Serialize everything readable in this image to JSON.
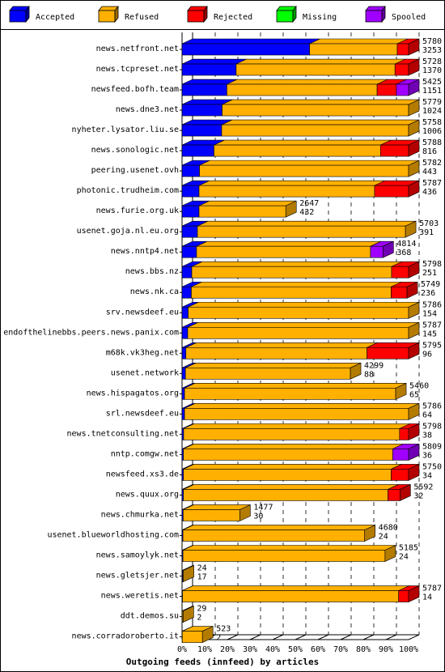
{
  "chart_data": {
    "type": "bar",
    "stacked": true,
    "orientation": "horizontal",
    "title": "Outgoing feeds (innfeed) by articles",
    "xlim": [
      0,
      100
    ],
    "x_ticks": [
      "0%",
      "10%",
      "20%",
      "30%",
      "40%",
      "50%",
      "60%",
      "70%",
      "80%",
      "90%",
      "100%"
    ],
    "grid": "vertical dashed at 10% steps",
    "legend_position": "top",
    "series": [
      {
        "name": "Accepted",
        "color": "#0000ff"
      },
      {
        "name": "Refused",
        "color": "#ffb000"
      },
      {
        "name": "Rejected",
        "color": "#ff0000"
      },
      {
        "name": "Missing",
        "color": "#00ff00"
      },
      {
        "name": "Spooled",
        "color": "#a000ff"
      }
    ],
    "rows": [
      {
        "label": "news.netfront.net",
        "total": 5780,
        "accepted": 3253,
        "segments": [
          56.3,
          38.7,
          5.0,
          0,
          0
        ]
      },
      {
        "label": "news.tcpreset.net",
        "total": 5728,
        "accepted": 1370,
        "segments": [
          23.9,
          70.1,
          6.0,
          0,
          0
        ]
      },
      {
        "label": "newsfeed.bofh.team",
        "total": 5425,
        "accepted": 1151,
        "segments": [
          19.8,
          66.3,
          8.5,
          0,
          5.4
        ]
      },
      {
        "label": "news.dne3.net",
        "total": 5779,
        "accepted": 1024,
        "segments": [
          17.7,
          82.3,
          0,
          0,
          0
        ]
      },
      {
        "label": "nyheter.lysator.liu.se",
        "total": 5758,
        "accepted": 1006,
        "segments": [
          17.5,
          82.5,
          0,
          0,
          0
        ]
      },
      {
        "label": "news.sonologic.net",
        "total": 5788,
        "accepted": 816,
        "segments": [
          14.1,
          73.5,
          12.4,
          0,
          0
        ]
      },
      {
        "label": "peering.usenet.ovh",
        "total": 5782,
        "accepted": 443,
        "segments": [
          7.7,
          92.3,
          0,
          0,
          0
        ]
      },
      {
        "label": "photonic.trudheim.com",
        "total": 5787,
        "accepted": 436,
        "segments": [
          7.5,
          77.5,
          15.0,
          0,
          0
        ]
      },
      {
        "label": "news.furie.org.uk",
        "total": 2647,
        "accepted": 432,
        "segments": [
          7.5,
          38.3,
          0,
          0,
          0
        ]
      },
      {
        "label": "usenet.goja.nl.eu.org",
        "total": 5703,
        "accepted": 391,
        "segments": [
          6.8,
          91.8,
          0,
          0,
          0
        ]
      },
      {
        "label": "news.nntp4.net",
        "total": 4814,
        "accepted": 368,
        "segments": [
          6.4,
          76.8,
          0,
          0,
          5.5
        ]
      },
      {
        "label": "news.bbs.nz",
        "total": 5798,
        "accepted": 251,
        "segments": [
          4.3,
          88.2,
          7.5,
          0,
          0
        ]
      },
      {
        "label": "news.nk.ca",
        "total": 5749,
        "accepted": 236,
        "segments": [
          4.1,
          88.2,
          7.0,
          0,
          0
        ]
      },
      {
        "label": "srv.newsdeef.eu",
        "total": 5786,
        "accepted": 154,
        "segments": [
          2.7,
          97.3,
          0,
          0,
          0
        ]
      },
      {
        "label": "endofthelinebbs.peers.news.panix.com",
        "total": 5787,
        "accepted": 145,
        "segments": [
          2.5,
          97.5,
          0,
          0,
          0
        ]
      },
      {
        "label": "m68k.vk3heg.net",
        "total": 5795,
        "accepted": 96,
        "segments": [
          1.7,
          79.9,
          18.4,
          0,
          0
        ]
      },
      {
        "label": "usenet.network",
        "total": 4299,
        "accepted": 88,
        "segments": [
          1.5,
          72.8,
          0,
          0,
          0
        ]
      },
      {
        "label": "news.hispagatos.org",
        "total": 5460,
        "accepted": 65,
        "segments": [
          1.1,
          93.2,
          0,
          0,
          0
        ]
      },
      {
        "label": "srl.newsdeef.eu",
        "total": 5786,
        "accepted": 64,
        "segments": [
          1.1,
          98.9,
          0,
          0,
          0
        ]
      },
      {
        "label": "news.tnetconsulting.net",
        "total": 5798,
        "accepted": 38,
        "segments": [
          0.7,
          95.3,
          4.0,
          0,
          0
        ]
      },
      {
        "label": "nntp.comgw.net",
        "total": 5809,
        "accepted": 36,
        "segments": [
          0.6,
          92.4,
          0,
          0,
          7.0
        ]
      },
      {
        "label": "newsfeed.xs3.de",
        "total": 5750,
        "accepted": 34,
        "segments": [
          0.6,
          91.7,
          7.7,
          0,
          0
        ]
      },
      {
        "label": "news.quux.org",
        "total": 5592,
        "accepted": 32,
        "segments": [
          0.6,
          90.3,
          5.3,
          0,
          0
        ]
      },
      {
        "label": "news.chmurka.net",
        "total": 1477,
        "accepted": 30,
        "segments": [
          0.5,
          25.0,
          0,
          0,
          0
        ]
      },
      {
        "label": "usenet.blueworldhosting.com",
        "total": 4680,
        "accepted": 24,
        "segments": [
          0.4,
          80.2,
          0,
          0,
          0
        ]
      },
      {
        "label": "news.samoylyk.net",
        "total": 5185,
        "accepted": 24,
        "segments": [
          0.4,
          89.2,
          0,
          0,
          0
        ]
      },
      {
        "label": "news.gletsjer.net",
        "total": 24,
        "accepted": 17,
        "segments": [
          0.3,
          0.1,
          0,
          0,
          0
        ]
      },
      {
        "label": "news.weretis.net",
        "total": 5787,
        "accepted": 14,
        "segments": [
          0.2,
          95.4,
          4.4,
          0,
          0
        ]
      },
      {
        "label": "ddt.demos.su",
        "total": 29,
        "accepted": 2,
        "segments": [
          0.1,
          0.4,
          0,
          0,
          0
        ]
      },
      {
        "label": "news.corradoroberto.it",
        "total": 523,
        "accepted": 2,
        "segments": [
          0.1,
          8.9,
          0,
          0,
          0
        ]
      }
    ]
  }
}
